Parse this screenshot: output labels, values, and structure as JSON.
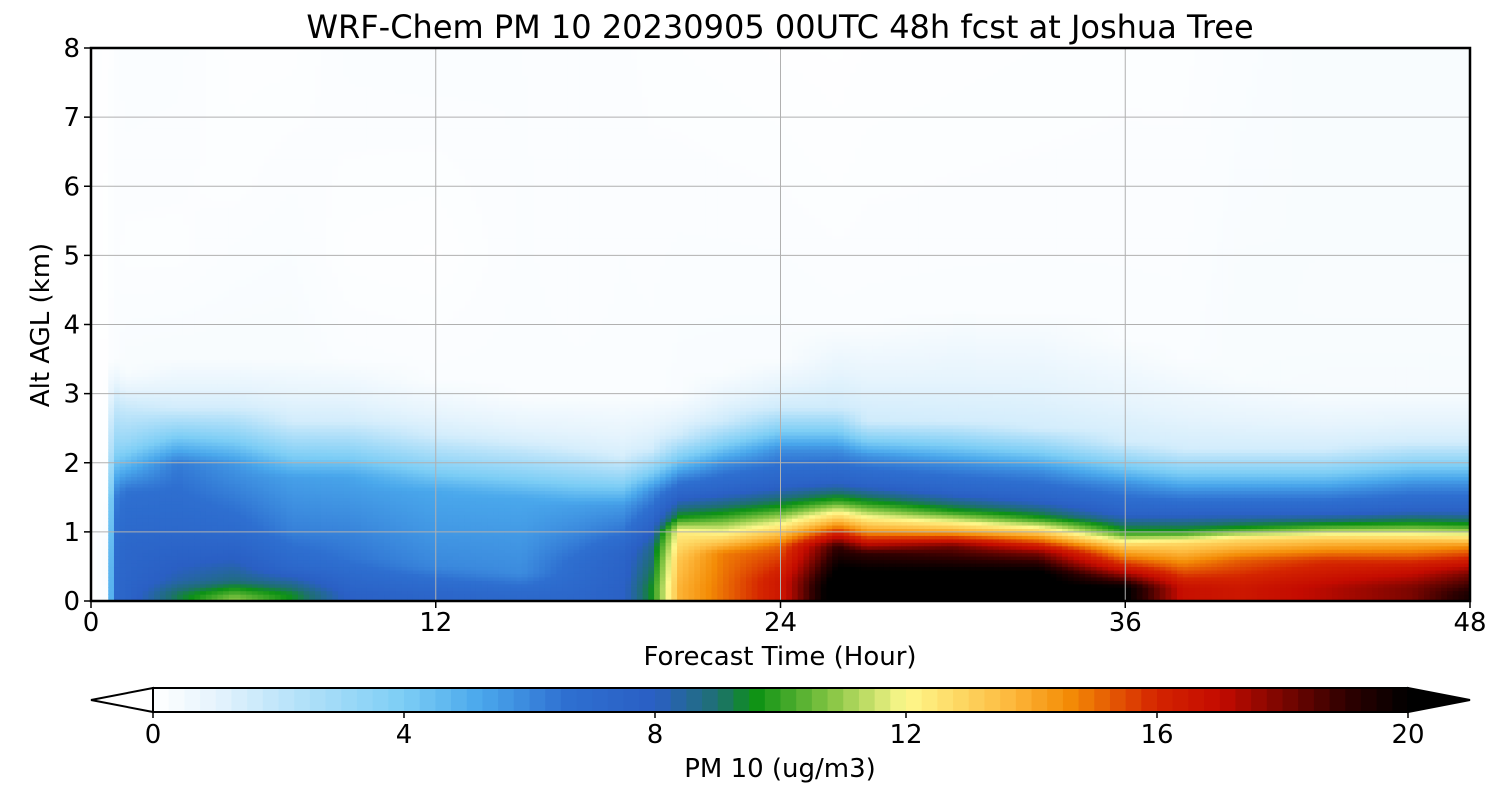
{
  "chart_data": {
    "type": "heatmap",
    "title": "WRF-Chem PM 10  20230905 00UTC 48h fcst at Joshua Tree",
    "xlabel": "Forecast Time (Hour)",
    "ylabel": "Alt AGL (km)",
    "xlim": [
      0,
      48
    ],
    "ylim": [
      0,
      8
    ],
    "x_ticks": [
      0,
      12,
      24,
      36,
      48
    ],
    "y_ticks": [
      0,
      1,
      2,
      3,
      4,
      5,
      6,
      7,
      8
    ],
    "grid": true,
    "colorbar": {
      "label": "PM 10  (ug/m3)",
      "range": [
        0,
        20
      ],
      "ticks": [
        0,
        4,
        8,
        12,
        16,
        20
      ],
      "extend": "both",
      "orientation": "horizontal",
      "colors": [
        "#ffffff",
        "#e6f4fd",
        "#bfe5fa",
        "#7ccdf5",
        "#4aa8ec",
        "#2e6fd0",
        "#2a5fc4",
        "#1e7070",
        "#0d9214",
        "#86c544",
        "#fef88c",
        "#fdbb40",
        "#f48c06",
        "#d42400",
        "#c40b00",
        "#300000",
        "#000000"
      ],
      "color_stops": [
        0,
        0.05,
        0.1,
        0.2,
        0.26,
        0.33,
        0.4,
        0.45,
        0.48,
        0.54,
        0.6,
        0.68,
        0.73,
        0.8,
        0.85,
        0.95,
        1.0
      ]
    },
    "x_hours": [
      0,
      0.5,
      0.8,
      1.2,
      3,
      5,
      7,
      9,
      12,
      15,
      17,
      18.5,
      19.5,
      20.5,
      22,
      24,
      26,
      27,
      30,
      33,
      36,
      38,
      40,
      43,
      46,
      48
    ],
    "profiles": [
      [
        0.2,
        0.05,
        0.5,
        0.1,
        1.0,
        0.05,
        3,
        0.04,
        8,
        0.08
      ],
      [
        0.1,
        0.2,
        0.6,
        0.3,
        1.2,
        0.15,
        2.5,
        0.08,
        4,
        0.04,
        8,
        0.05
      ],
      [
        0.1,
        7.2,
        0.5,
        7.0,
        1.5,
        6.2,
        2.2,
        3.5,
        3.5,
        0.2,
        8,
        0.12
      ],
      [
        0.1,
        7.5,
        0.8,
        7.3,
        1.6,
        6.5,
        2.3,
        3.2,
        3.3,
        0.3,
        5,
        0.12,
        8,
        0.22
      ],
      [
        0.1,
        9.2,
        0.3,
        8.3,
        1.0,
        7.2,
        2.0,
        6.3,
        2.8,
        1.5,
        3.5,
        0.3,
        5,
        0.12,
        8,
        0.2
      ],
      [
        0.05,
        10.8,
        0.3,
        8.8,
        1.0,
        7.0,
        2.0,
        5.6,
        2.8,
        1.5,
        3.5,
        0.3,
        6,
        0.12,
        8,
        0.08
      ],
      [
        0.1,
        9.5,
        0.5,
        7.2,
        1.0,
        6.2,
        1.8,
        5.4,
        2.6,
        1.5,
        3.5,
        0.3,
        8,
        0.08
      ],
      [
        0.1,
        7.8,
        0.6,
        6.5,
        1.2,
        5.9,
        1.8,
        5.3,
        2.6,
        1.5,
        3.5,
        0.2,
        5,
        0.08,
        8,
        0.2
      ],
      [
        0.1,
        7.4,
        0.5,
        6.0,
        1.0,
        5.6,
        1.6,
        5.2,
        2.4,
        1.5,
        3.2,
        0.2,
        5,
        0.05,
        8,
        0.22
      ],
      [
        0.1,
        7.1,
        0.4,
        5.9,
        0.9,
        5.6,
        1.5,
        5.2,
        2.3,
        1.4,
        3.0,
        0.2,
        8,
        0.18
      ],
      [
        0.1,
        7.3,
        0.6,
        6.8,
        1.0,
        6.0,
        1.4,
        5.4,
        2.2,
        1.4,
        3.0,
        0.2,
        5,
        0.14,
        8,
        0.15
      ],
      [
        0.2,
        7.8,
        0.7,
        7.5,
        1.0,
        6.5,
        1.4,
        5.5,
        2.1,
        1.4,
        3.0,
        0.2,
        8,
        0.15
      ],
      [
        0.2,
        9.5,
        0.8,
        8.6,
        1.2,
        7.2,
        1.6,
        5.8,
        2.2,
        1.5,
        3.0,
        0.2,
        8,
        0.12
      ],
      [
        0.2,
        13.8,
        0.6,
        13.4,
        1.0,
        12.3,
        1.2,
        9.8,
        1.5,
        7.8,
        1.8,
        6.0,
        2.4,
        1.6,
        3.0,
        0.25,
        8,
        0.1
      ],
      [
        0.2,
        15.0,
        0.7,
        14.8,
        1.0,
        12.0,
        1.25,
        9.8,
        1.6,
        7.6,
        2.0,
        5.8,
        2.6,
        1.6,
        3.3,
        0.25,
        8,
        0.08
      ],
      [
        0.3,
        16.5,
        0.8,
        15.2,
        1.1,
        12.2,
        1.35,
        9.8,
        1.7,
        7.6,
        2.2,
        5.8,
        2.8,
        1.6,
        3.5,
        0.25,
        8,
        0.05
      ],
      [
        0.2,
        21,
        0.8,
        19.0,
        1.1,
        14.5,
        1.45,
        10.0,
        1.75,
        7.6,
        2.2,
        5.8,
        2.8,
        1.6,
        4.0,
        0.2,
        6.6,
        0.07,
        8,
        0.04
      ],
      [
        0.2,
        21,
        0.7,
        19.0,
        1.0,
        14.5,
        1.4,
        10.0,
        1.7,
        7.6,
        2.1,
        5.8,
        2.6,
        1.6,
        4.0,
        0.2,
        8,
        0.06
      ],
      [
        0.4,
        20.2,
        0.8,
        18.2,
        1.0,
        14.2,
        1.3,
        9.8,
        1.6,
        7.5,
        2.0,
        5.8,
        2.6,
        1.5,
        4.2,
        0.2,
        8,
        0.08
      ],
      [
        0.4,
        20.3,
        0.7,
        18.0,
        0.95,
        14.0,
        1.2,
        9.8,
        1.5,
        7.5,
        1.9,
        5.8,
        2.5,
        1.5,
        4.2,
        0.2,
        8,
        0.1
      ],
      [
        0.2,
        20.1,
        0.5,
        16.2,
        0.8,
        13.2,
        1.0,
        9.8,
        1.3,
        7.5,
        1.7,
        5.8,
        2.3,
        1.5,
        3.8,
        0.2,
        8,
        0.12
      ],
      [
        0.2,
        16.8,
        0.5,
        15.0,
        0.85,
        12.8,
        1.0,
        9.8,
        1.3,
        7.5,
        1.6,
        5.8,
        2.2,
        1.5,
        3.5,
        0.2,
        8,
        0.12
      ],
      [
        0.2,
        16.5,
        0.6,
        15.2,
        0.9,
        12.8,
        1.05,
        9.8,
        1.3,
        7.5,
        1.6,
        5.8,
        2.2,
        1.5,
        3.2,
        0.3,
        8,
        0.2
      ],
      [
        0.2,
        17.2,
        0.6,
        15.8,
        0.9,
        13.2,
        1.1,
        9.8,
        1.3,
        7.5,
        1.6,
        5.8,
        2.2,
        1.5,
        3.0,
        0.35,
        4.2,
        0.25,
        8,
        0.3
      ],
      [
        0.2,
        18.0,
        0.5,
        16.5,
        0.85,
        13.8,
        1.12,
        9.8,
        1.35,
        7.5,
        1.7,
        5.8,
        2.3,
        1.5,
        3.0,
        0.35,
        4.2,
        0.25,
        8,
        0.3
      ],
      [
        0.1,
        19.5,
        0.4,
        18.0,
        0.8,
        14.5,
        1.1,
        9.8,
        1.35,
        7.5,
        1.7,
        5.8,
        2.3,
        1.5,
        3.0,
        0.35,
        4.1,
        0.25,
        8,
        0.3
      ]
    ]
  }
}
